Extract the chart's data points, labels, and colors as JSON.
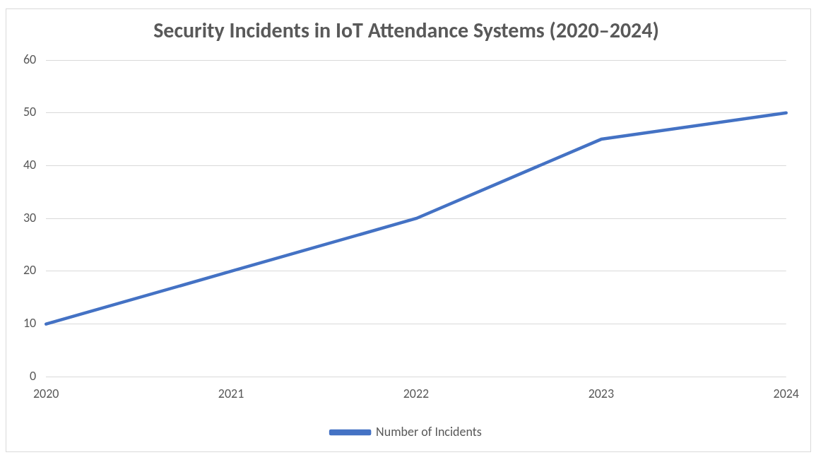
{
  "chart_data": {
    "type": "line",
    "title": "Security Incidents in IoT Attendance Systems (2020–2024)",
    "categories": [
      "2020",
      "2021",
      "2022",
      "2023",
      "2024"
    ],
    "series": [
      {
        "name": "Number of Incidents",
        "color": "#4472c4",
        "values": [
          10,
          20,
          30,
          45,
          50
        ]
      }
    ],
    "ylim": [
      0,
      60
    ],
    "yticks": [
      0,
      10,
      20,
      30,
      40,
      50,
      60
    ],
    "grid": "y",
    "legend": "bottom",
    "marker": "none"
  }
}
